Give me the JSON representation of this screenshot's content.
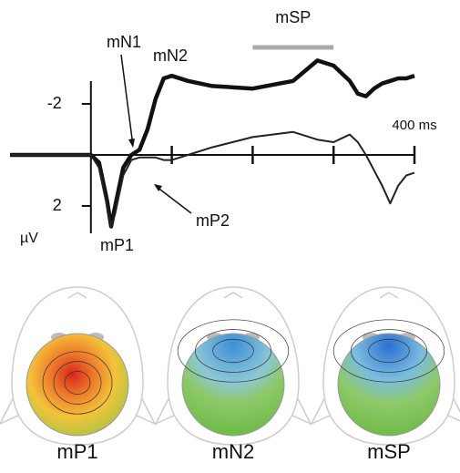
{
  "chart_data": {
    "type": "line",
    "x": [
      -100,
      0,
      10,
      20,
      25,
      30,
      40,
      50,
      60,
      70,
      80,
      90,
      100,
      120,
      150,
      200,
      250,
      280,
      300,
      320,
      330,
      340,
      350,
      360,
      370,
      380,
      390,
      400
    ],
    "series": [
      {
        "color": "#111111",
        "width": 4.5,
        "values": [
          0,
          0,
          0.3,
          1.8,
          2.8,
          2.0,
          0.5,
          0,
          -0.2,
          -1.0,
          -2.2,
          -3.0,
          -3.1,
          -2.9,
          -2.7,
          -2.6,
          -2.9,
          -3.7,
          -3.5,
          -2.9,
          -2.4,
          -2.3,
          -2.6,
          -2.8,
          -2.9,
          -3.0,
          -3.0,
          -3.1
        ]
      },
      {
        "color": "#222222",
        "width": 2,
        "values": [
          0,
          0,
          0.5,
          2.0,
          2.8,
          2.3,
          0.8,
          0.2,
          0.1,
          0.1,
          0.1,
          0.2,
          0.2,
          0.0,
          -0.3,
          -0.7,
          -0.9,
          -0.6,
          -0.5,
          -0.8,
          -0.5,
          0,
          0.6,
          1.2,
          1.9,
          1.2,
          0.8,
          0.7
        ]
      }
    ],
    "xlim": [
      -100,
      400
    ],
    "ylim": [
      3,
      -4
    ],
    "xticks": [
      {
        "value": 100,
        "label": null
      },
      {
        "value": 200,
        "label": null
      },
      {
        "value": 300,
        "label": null
      },
      {
        "value": 400,
        "label": "400 ms"
      }
    ],
    "yticks": [
      -2,
      2
    ],
    "ylabel": "µV",
    "window": {
      "label": "mSP",
      "range": [
        200,
        300
      ],
      "color": "#aaaaaa"
    },
    "annotations": [
      "mN1",
      "mN2",
      "mP1",
      "mP2"
    ],
    "maps": [
      "mP1",
      "mN2",
      "mSP"
    ]
  }
}
